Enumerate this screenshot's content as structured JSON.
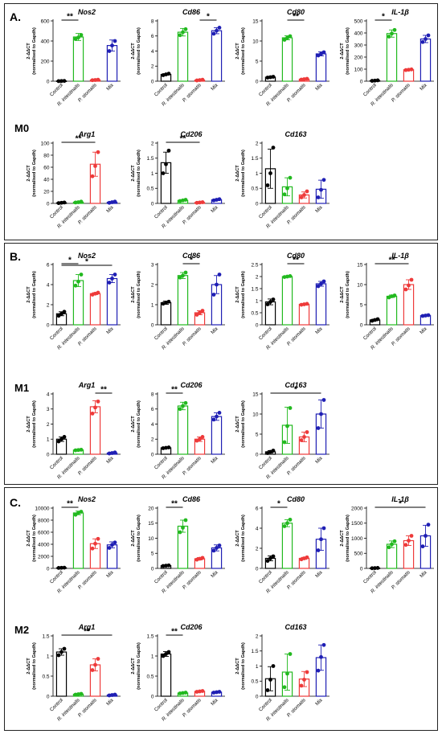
{
  "groups": [
    "Control",
    "R. intestinalis",
    "P. stomatis",
    "Mix"
  ],
  "group_colors": [
    "#000000",
    "#22b91f",
    "#ee3a3a",
    "#1f1fb4"
  ],
  "ylabel_main": "2-ΔΔCT",
  "ylabel_sub": "(normalised to Gapdh)",
  "panels": [
    {
      "label": "A.",
      "condition": "M0"
    },
    {
      "label": "B.",
      "condition": "M1"
    },
    {
      "label": "C.",
      "condition": "M2"
    }
  ],
  "chart_data": [
    {
      "type": "bar",
      "panel": "A.",
      "title": "Nos2",
      "ylim": [
        0,
        600
      ],
      "yticks": [
        0,
        200,
        400,
        600
      ],
      "values": [
        2,
        440,
        12,
        355
      ],
      "errors": [
        1,
        35,
        3,
        55
      ],
      "points": [
        [
          1,
          2,
          3
        ],
        [
          420,
          435,
          460
        ],
        [
          10,
          12,
          15
        ],
        [
          300,
          355,
          400
        ]
      ],
      "sig": [
        {
          "from": 0,
          "to": 1,
          "label": "**"
        }
      ]
    },
    {
      "type": "bar",
      "panel": "A.",
      "title": "Cd86",
      "ylim": [
        0,
        8
      ],
      "yticks": [
        0,
        2,
        4,
        6,
        8
      ],
      "values": [
        0.9,
        6.5,
        0.15,
        6.7
      ],
      "errors": [
        0.1,
        0.5,
        0.05,
        0.4
      ],
      "points": [
        [
          0.8,
          0.9,
          1.0
        ],
        [
          6.1,
          6.5,
          6.9
        ],
        [
          0.1,
          0.15,
          0.2
        ],
        [
          6.3,
          6.7,
          7.1
        ]
      ],
      "sig": [
        {
          "from": 2,
          "to": 3,
          "label": "*"
        }
      ]
    },
    {
      "type": "bar",
      "panel": "A.",
      "title": "Cd80",
      "ylim": [
        0,
        15
      ],
      "yticks": [
        0,
        5,
        10,
        15
      ],
      "values": [
        1.0,
        10.8,
        0.5,
        6.8
      ],
      "errors": [
        0.1,
        0.5,
        0.1,
        0.5
      ],
      "points": [
        [
          0.9,
          1.0,
          1.1
        ],
        [
          10.3,
          10.8,
          11.2
        ],
        [
          0.4,
          0.5,
          0.6
        ],
        [
          6.4,
          6.8,
          7.2
        ]
      ],
      "sig": [
        {
          "from": 1,
          "to": 2,
          "label": "**"
        }
      ]
    },
    {
      "type": "bar",
      "panel": "A.",
      "title": "IL-1β",
      "ylim": [
        0,
        500
      ],
      "yticks": [
        0,
        100,
        200,
        300,
        400,
        500
      ],
      "values": [
        5,
        395,
        95,
        350
      ],
      "errors": [
        2,
        30,
        5,
        30
      ],
      "points": [
        [
          3,
          5,
          7
        ],
        [
          370,
          395,
          425
        ],
        [
          92,
          95,
          98
        ],
        [
          325,
          350,
          380
        ]
      ],
      "sig": [
        {
          "from": 0,
          "to": 1,
          "label": "*"
        }
      ]
    },
    {
      "type": "bar",
      "panel": "A.",
      "title": "Arg1",
      "ylim": [
        0,
        100
      ],
      "yticks": [
        0,
        20,
        40,
        60,
        80,
        100
      ],
      "values": [
        1,
        2,
        65,
        2
      ],
      "errors": [
        0.5,
        1,
        20,
        1
      ],
      "points": [
        [
          0.5,
          1,
          1.5
        ],
        [
          1.5,
          2,
          3
        ],
        [
          45,
          62,
          85
        ],
        [
          1,
          2,
          3
        ]
      ],
      "sig": [
        {
          "from": 0,
          "to": 2,
          "label": "**"
        }
      ]
    },
    {
      "type": "bar",
      "panel": "A.",
      "title": "Cd206",
      "ylim": [
        0,
        2.0
      ],
      "yticks": [
        0,
        0.5,
        1.0,
        1.5,
        2.0
      ],
      "values": [
        1.35,
        0.1,
        0.03,
        0.12
      ],
      "errors": [
        0.35,
        0.02,
        0.01,
        0.02
      ],
      "points": [
        [
          1.0,
          1.3,
          1.75
        ],
        [
          0.08,
          0.1,
          0.12
        ],
        [
          0.02,
          0.03,
          0.04
        ],
        [
          0.1,
          0.12,
          0.14
        ]
      ],
      "sig": [
        {
          "from": 0,
          "to": 2,
          "label": "**"
        }
      ]
    },
    {
      "type": "bar",
      "panel": "A.",
      "title": "Cd163",
      "ylim": [
        0,
        2.0
      ],
      "yticks": [
        0,
        0.5,
        1.0,
        1.5,
        2.0
      ],
      "values": [
        1.15,
        0.55,
        0.28,
        0.47
      ],
      "errors": [
        0.65,
        0.3,
        0.1,
        0.3
      ],
      "points": [
        [
          0.6,
          1.0,
          1.85
        ],
        [
          0.3,
          0.5,
          0.85
        ],
        [
          0.2,
          0.28,
          0.4
        ],
        [
          0.2,
          0.45,
          0.78
        ]
      ],
      "sig": []
    },
    {
      "type": "bar",
      "panel": "B.",
      "title": "Nos2",
      "ylim": [
        0,
        6
      ],
      "yticks": [
        0,
        2,
        4,
        6
      ],
      "values": [
        1.1,
        4.4,
        3.1,
        4.6
      ],
      "errors": [
        0.2,
        0.6,
        0.1,
        0.4
      ],
      "points": [
        [
          0.9,
          1.1,
          1.3
        ],
        [
          3.9,
          4.3,
          5.0
        ],
        [
          3.0,
          3.1,
          3.2
        ],
        [
          4.2,
          4.6,
          5.0
        ]
      ],
      "sig": [
        {
          "from": 0,
          "to": 1,
          "label": "*"
        },
        {
          "from": 0,
          "to": 3,
          "label": "*"
        }
      ]
    },
    {
      "type": "bar",
      "panel": "B.",
      "title": "Cd86",
      "ylim": [
        0,
        3
      ],
      "yticks": [
        0,
        1,
        2,
        3
      ],
      "values": [
        1.1,
        2.45,
        0.6,
        2.0
      ],
      "errors": [
        0.08,
        0.15,
        0.1,
        0.45
      ],
      "points": [
        [
          1.05,
          1.1,
          1.15
        ],
        [
          2.35,
          2.45,
          2.6
        ],
        [
          0.5,
          0.6,
          0.7
        ],
        [
          1.5,
          2.0,
          2.5
        ]
      ],
      "sig": [
        {
          "from": 1,
          "to": 2,
          "label": "*"
        }
      ]
    },
    {
      "type": "bar",
      "panel": "B.",
      "title": "Cd80",
      "ylim": [
        0,
        2.5
      ],
      "yticks": [
        0,
        0.5,
        1.0,
        1.5,
        2.0,
        2.5
      ],
      "values": [
        0.95,
        2.0,
        0.85,
        1.7
      ],
      "errors": [
        0.12,
        0.03,
        0.02,
        0.1
      ],
      "points": [
        [
          0.85,
          0.95,
          1.05
        ],
        [
          1.98,
          2.0,
          2.02
        ],
        [
          0.83,
          0.85,
          0.87
        ],
        [
          1.6,
          1.7,
          1.8
        ]
      ],
      "sig": [
        {
          "from": 1,
          "to": 2,
          "label": "**"
        }
      ]
    },
    {
      "type": "bar",
      "panel": "B.",
      "title": "IL-1β",
      "ylim": [
        0,
        15
      ],
      "yticks": [
        0,
        5,
        10,
        15
      ],
      "values": [
        1.2,
        7.1,
        10.0,
        2.3
      ],
      "errors": [
        0.2,
        0.3,
        1.2,
        0.1
      ],
      "points": [
        [
          1.0,
          1.2,
          1.4
        ],
        [
          6.8,
          7.1,
          7.3
        ],
        [
          8.8,
          9.8,
          11.2
        ],
        [
          2.2,
          2.3,
          2.4
        ]
      ],
      "sig": [
        {
          "from": 0,
          "to": 2,
          "label": "**"
        }
      ]
    },
    {
      "type": "bar",
      "panel": "B.",
      "title": "Arg1",
      "ylim": [
        0,
        4
      ],
      "yticks": [
        0,
        1,
        2,
        3,
        4
      ],
      "values": [
        1.0,
        0.28,
        3.15,
        0.08
      ],
      "errors": [
        0.15,
        0.02,
        0.4,
        0.05
      ],
      "points": [
        [
          0.85,
          1.0,
          1.15
        ],
        [
          0.26,
          0.28,
          0.3
        ],
        [
          2.7,
          3.1,
          3.5
        ],
        [
          0.05,
          0.08,
          0.12
        ]
      ],
      "sig": [
        {
          "from": 2,
          "to": 3,
          "label": "**"
        }
      ]
    },
    {
      "type": "bar",
      "panel": "B.",
      "title": "Cd206",
      "ylim": [
        0,
        8
      ],
      "yticks": [
        0,
        2,
        4,
        6,
        8
      ],
      "values": [
        0.85,
        6.4,
        2.0,
        5.0
      ],
      "errors": [
        0.1,
        0.5,
        0.3,
        0.5
      ],
      "points": [
        [
          0.8,
          0.85,
          0.9
        ],
        [
          6.0,
          6.4,
          6.8
        ],
        [
          1.8,
          2.0,
          2.3
        ],
        [
          4.6,
          5.0,
          5.5
        ]
      ],
      "sig": [
        {
          "from": 0,
          "to": 1,
          "label": "**"
        }
      ]
    },
    {
      "type": "bar",
      "panel": "B.",
      "title": "Cd163",
      "ylim": [
        0,
        15
      ],
      "yticks": [
        0,
        5,
        10,
        15
      ],
      "values": [
        0.6,
        7.2,
        4.3,
        10.0
      ],
      "errors": [
        0.3,
        4.5,
        1.2,
        3.5
      ],
      "points": [
        [
          0.3,
          0.6,
          0.9
        ],
        [
          3.0,
          7.0,
          11.5
        ],
        [
          3.5,
          4.3,
          5.5
        ],
        [
          6.5,
          10,
          13.5
        ]
      ],
      "sig": [
        {
          "from": 0,
          "to": 3,
          "label": "*"
        }
      ]
    },
    {
      "type": "bar",
      "panel": "C.",
      "title": "Nos2",
      "ylim": [
        0,
        10000
      ],
      "yticks": [
        0,
        2000,
        4000,
        6000,
        8000,
        10000
      ],
      "values": [
        100,
        9200,
        4100,
        3900
      ],
      "errors": [
        20,
        300,
        800,
        500
      ],
      "points": [
        [
          80,
          100,
          120
        ],
        [
          8900,
          9200,
          9400
        ],
        [
          3300,
          4100,
          4900
        ],
        [
          3400,
          3900,
          4300
        ]
      ],
      "sig": [
        {
          "from": 0,
          "to": 1,
          "label": "**"
        }
      ]
    },
    {
      "type": "bar",
      "panel": "C.",
      "title": "Cd86",
      "ylim": [
        0,
        20
      ],
      "yticks": [
        0,
        5,
        10,
        15,
        20
      ],
      "values": [
        0.9,
        14.0,
        3.2,
        6.8
      ],
      "errors": [
        0.1,
        2.0,
        0.4,
        1.0
      ],
      "points": [
        [
          0.8,
          0.9,
          1.0
        ],
        [
          12.0,
          13.5,
          16.0
        ],
        [
          2.9,
          3.2,
          3.5
        ],
        [
          5.9,
          6.8,
          7.6
        ]
      ],
      "sig": [
        {
          "from": 0,
          "to": 1,
          "label": "**"
        }
      ]
    },
    {
      "type": "bar",
      "panel": "C.",
      "title": "Cd80",
      "ylim": [
        0,
        6
      ],
      "yticks": [
        0,
        2,
        4,
        6
      ],
      "values": [
        1.0,
        4.5,
        1.0,
        2.9
      ],
      "errors": [
        0.25,
        0.35,
        0.1,
        1.1
      ],
      "points": [
        [
          0.75,
          1.0,
          1.2
        ],
        [
          4.2,
          4.5,
          4.85
        ],
        [
          0.9,
          1.0,
          1.1
        ],
        [
          1.8,
          2.9,
          4.0
        ]
      ],
      "sig": [
        {
          "from": 0,
          "to": 1,
          "label": "*"
        }
      ]
    },
    {
      "type": "bar",
      "panel": "C.",
      "title": "IL-1β",
      "ylim": [
        0,
        2000
      ],
      "yticks": [
        0,
        500,
        1000,
        1500,
        2000
      ],
      "values": [
        10,
        800,
        920,
        1080
      ],
      "errors": [
        5,
        110,
        160,
        350
      ],
      "points": [
        [
          5,
          10,
          15
        ],
        [
          700,
          800,
          900
        ],
        [
          780,
          920,
          1080
        ],
        [
          730,
          1080,
          1450
        ]
      ],
      "sig": [
        {
          "from": 0,
          "to": 3,
          "label": "*"
        }
      ]
    },
    {
      "type": "bar",
      "panel": "C.",
      "title": "Arg1",
      "ylim": [
        0,
        1.5
      ],
      "yticks": [
        0,
        0.5,
        1.0,
        1.5
      ],
      "values": [
        1.1,
        0.05,
        0.78,
        0.03
      ],
      "errors": [
        0.08,
        0.01,
        0.15,
        0.01
      ],
      "points": [
        [
          1.02,
          1.1,
          1.18
        ],
        [
          0.04,
          0.05,
          0.06
        ],
        [
          0.65,
          0.78,
          0.93
        ],
        [
          0.02,
          0.03,
          0.04
        ]
      ],
      "sig": [
        {
          "from": 0,
          "to": 3,
          "label": "**"
        }
      ]
    },
    {
      "type": "bar",
      "panel": "C.",
      "title": "Cd206",
      "ylim": [
        0,
        1.5
      ],
      "yticks": [
        0,
        0.5,
        1.0,
        1.5
      ],
      "values": [
        1.05,
        0.08,
        0.12,
        0.1
      ],
      "errors": [
        0.06,
        0.01,
        0.01,
        0.01
      ],
      "points": [
        [
          1.0,
          1.05,
          1.1
        ],
        [
          0.07,
          0.08,
          0.09
        ],
        [
          0.11,
          0.12,
          0.13
        ],
        [
          0.09,
          0.1,
          0.11
        ]
      ],
      "sig": [
        {
          "from": 0,
          "to": 1,
          "label": "**"
        }
      ]
    },
    {
      "type": "bar",
      "panel": "C.",
      "title": "Cd163",
      "ylim": [
        0,
        2.0
      ],
      "yticks": [
        0,
        0.5,
        1.0,
        1.5,
        2.0
      ],
      "values": [
        0.58,
        0.8,
        0.57,
        1.28
      ],
      "errors": [
        0.4,
        0.6,
        0.25,
        0.42
      ],
      "points": [
        [
          0.2,
          0.55,
          1.0
        ],
        [
          0.3,
          0.75,
          1.4
        ],
        [
          0.35,
          0.55,
          0.8
        ],
        [
          0.85,
          1.3,
          1.7
        ]
      ],
      "sig": []
    }
  ]
}
